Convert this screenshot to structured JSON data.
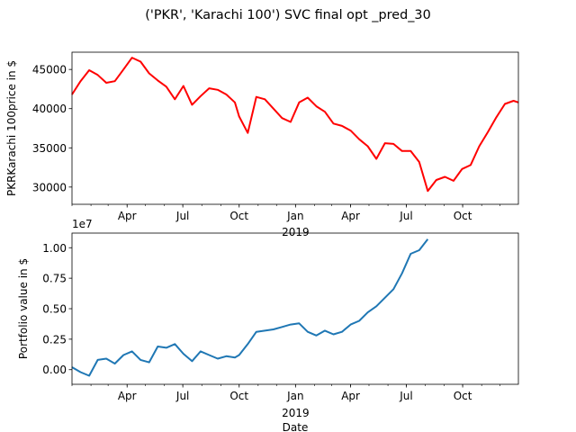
{
  "title": "('PKR', 'Karachi 100') SVC final opt _pred_30",
  "colors": {
    "price": "#ff0000",
    "portfolio": "#1f77b4"
  },
  "chart_data": [
    {
      "type": "line",
      "ylabel": "PKRKarachi 100price in $",
      "xlabel": "",
      "x_tick_labels": [
        "Apr",
        "Jul",
        "Oct",
        "Jan",
        "Apr",
        "Jul",
        "Oct"
      ],
      "x_year_label": "2019",
      "y_ticks": [
        30000,
        35000,
        40000,
        45000
      ],
      "y_tick_labels": [
        "30000",
        "35000",
        "40000",
        "45000"
      ],
      "ylim": [
        27800,
        47200
      ],
      "xlim": [
        "2018-01-01",
        "2019-12-31"
      ],
      "series": [
        {
          "color": "#ff0000",
          "x": [
            "2018-01-01",
            "2018-01-15",
            "2018-01-29",
            "2018-02-12",
            "2018-02-26",
            "2018-03-12",
            "2018-03-26",
            "2018-04-09",
            "2018-04-23",
            "2018-05-07",
            "2018-05-21",
            "2018-06-04",
            "2018-06-18",
            "2018-07-02",
            "2018-07-16",
            "2018-07-30",
            "2018-08-13",
            "2018-08-27",
            "2018-09-10",
            "2018-09-24",
            "2018-10-01",
            "2018-10-15",
            "2018-10-29",
            "2018-11-12",
            "2018-11-26",
            "2018-12-10",
            "2018-12-24",
            "2019-01-07",
            "2019-01-21",
            "2019-02-04",
            "2019-02-18",
            "2019-03-04",
            "2019-03-18",
            "2019-04-01",
            "2019-04-15",
            "2019-04-29",
            "2019-05-13",
            "2019-05-27",
            "2019-06-10",
            "2019-06-24",
            "2019-07-08",
            "2019-07-22",
            "2019-08-05",
            "2019-08-19",
            "2019-09-02",
            "2019-09-16",
            "2019-09-30",
            "2019-10-14",
            "2019-10-28",
            "2019-11-11",
            "2019-11-25",
            "2019-12-09",
            "2019-12-23",
            "2019-12-31"
          ],
          "values": [
            41800,
            43500,
            44900,
            44300,
            43300,
            43500,
            45000,
            46500,
            46000,
            44500,
            43600,
            42800,
            41200,
            42900,
            40500,
            41600,
            42600,
            42400,
            41800,
            40800,
            39000,
            36900,
            41500,
            41200,
            40000,
            38800,
            38300,
            40800,
            41400,
            40300,
            39600,
            38100,
            37800,
            37200,
            36100,
            35200,
            33600,
            35600,
            35500,
            34600,
            34600,
            33200,
            29500,
            30900,
            31300,
            30800,
            32300,
            32800,
            35200,
            37000,
            38900,
            40600,
            41000,
            40800
          ]
        }
      ]
    },
    {
      "type": "line",
      "ylabel": "Portfolio value in $",
      "xlabel": "Date",
      "x_tick_labels": [
        "Apr",
        "Jul",
        "Oct",
        "Jan",
        "Apr",
        "Jul",
        "Oct"
      ],
      "x_year_label": "2019",
      "y_offset_label": "1e7",
      "y_ticks": [
        0.0,
        0.25,
        0.5,
        0.75,
        1.0
      ],
      "y_tick_labels": [
        "0.00",
        "0.25",
        "0.50",
        "0.75",
        "1.00"
      ],
      "ylim": [
        -0.12,
        1.12
      ],
      "xlim": [
        "2018-01-01",
        "2019-12-31"
      ],
      "series": [
        {
          "color": "#1f77b4",
          "x": [
            "2018-01-01",
            "2018-01-15",
            "2018-01-29",
            "2018-02-12",
            "2018-02-26",
            "2018-03-12",
            "2018-03-26",
            "2018-04-09",
            "2018-04-23",
            "2018-05-07",
            "2018-05-21",
            "2018-06-04",
            "2018-06-18",
            "2018-07-02",
            "2018-07-16",
            "2018-07-30",
            "2018-08-13",
            "2018-08-27",
            "2018-09-10",
            "2018-09-24",
            "2018-10-01",
            "2018-10-15",
            "2018-10-29",
            "2018-11-12",
            "2018-11-26",
            "2018-12-10",
            "2018-12-24",
            "2019-01-07",
            "2019-01-21",
            "2019-02-04",
            "2019-02-18",
            "2019-03-04",
            "2019-03-18",
            "2019-04-01",
            "2019-04-15",
            "2019-04-29",
            "2019-05-13",
            "2019-05-27",
            "2019-06-10",
            "2019-06-24",
            "2019-07-08",
            "2019-07-22",
            "2019-08-05"
          ],
          "values": [
            0.02,
            -0.02,
            -0.05,
            0.08,
            0.09,
            0.05,
            0.12,
            0.15,
            0.08,
            0.06,
            0.19,
            0.18,
            0.21,
            0.13,
            0.07,
            0.15,
            0.12,
            0.09,
            0.11,
            0.1,
            0.12,
            0.21,
            0.31,
            0.32,
            0.33,
            0.35,
            0.37,
            0.38,
            0.31,
            0.28,
            0.32,
            0.29,
            0.31,
            0.37,
            0.4,
            0.47,
            0.52,
            0.59,
            0.66,
            0.79,
            0.95,
            0.98,
            1.07
          ]
        }
      ]
    }
  ]
}
